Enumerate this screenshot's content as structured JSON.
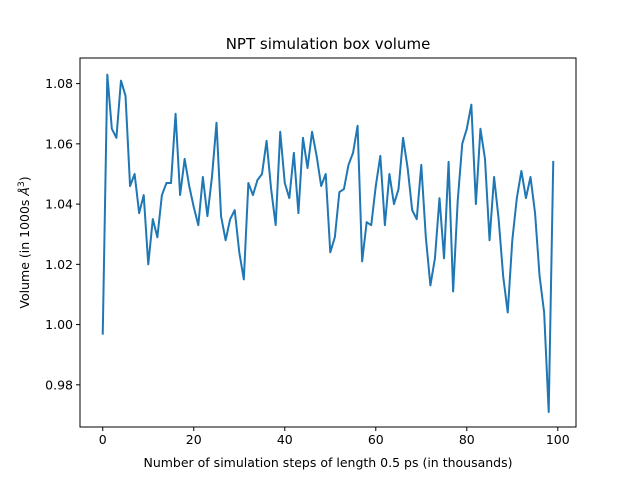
{
  "chart_data": {
    "type": "line",
    "title": "NPT simulation box volume",
    "xlabel": "Number of simulation steps of length 0.5 ps (in thousands)",
    "ylabel_main": "Volume (in 1000s ",
    "ylabel_symbol": "Å",
    "ylabel_power": "3",
    "ylabel_end": ")",
    "xlim": [
      -5,
      104
    ],
    "ylim": [
      0.966,
      1.0885
    ],
    "xticks": [
      0,
      20,
      40,
      60,
      80,
      100
    ],
    "yticks": [
      0.98,
      1.0,
      1.02,
      1.04,
      1.06,
      1.08
    ],
    "ytick_labels": [
      "0.98",
      "1.00",
      "1.02",
      "1.04",
      "1.06",
      "1.08"
    ],
    "grid": false,
    "series": [
      {
        "color": "#1f77b4",
        "x": [
          0,
          1,
          2,
          3,
          4,
          5,
          6,
          7,
          8,
          9,
          10,
          11,
          12,
          13,
          14,
          15,
          16,
          17,
          18,
          19,
          20,
          21,
          22,
          23,
          24,
          25,
          26,
          27,
          28,
          29,
          30,
          31,
          32,
          33,
          34,
          35,
          36,
          37,
          38,
          39,
          40,
          41,
          42,
          43,
          44,
          45,
          46,
          47,
          48,
          49,
          50,
          51,
          52,
          53,
          54,
          55,
          56,
          57,
          58,
          59,
          60,
          61,
          62,
          63,
          64,
          65,
          66,
          67,
          68,
          69,
          70,
          71,
          72,
          73,
          74,
          75,
          76,
          77,
          78,
          79,
          80,
          81,
          82,
          83,
          84,
          85,
          86,
          87,
          88,
          89,
          90,
          91,
          92,
          93,
          94,
          95,
          96,
          97,
          98,
          99
        ],
        "values": [
          0.997,
          1.083,
          1.065,
          1.062,
          1.081,
          1.076,
          1.046,
          1.05,
          1.037,
          1.043,
          1.02,
          1.035,
          1.029,
          1.043,
          1.047,
          1.047,
          1.07,
          1.043,
          1.055,
          1.046,
          1.039,
          1.033,
          1.049,
          1.036,
          1.049,
          1.067,
          1.036,
          1.028,
          1.035,
          1.038,
          1.024,
          1.015,
          1.047,
          1.043,
          1.048,
          1.05,
          1.061,
          1.045,
          1.033,
          1.064,
          1.047,
          1.042,
          1.057,
          1.037,
          1.062,
          1.052,
          1.064,
          1.056,
          1.046,
          1.05,
          1.024,
          1.029,
          1.044,
          1.045,
          1.053,
          1.057,
          1.066,
          1.021,
          1.034,
          1.033,
          1.046,
          1.056,
          1.033,
          1.05,
          1.04,
          1.045,
          1.062,
          1.052,
          1.038,
          1.035,
          1.053,
          1.029,
          1.013,
          1.022,
          1.042,
          1.022,
          1.054,
          1.011,
          1.041,
          1.06,
          1.065,
          1.073,
          1.04,
          1.065,
          1.055,
          1.028,
          1.049,
          1.035,
          1.016,
          1.004,
          1.028,
          1.042,
          1.051,
          1.042,
          1.049,
          1.037,
          1.016,
          1.004,
          0.971,
          1.054
        ]
      }
    ]
  }
}
